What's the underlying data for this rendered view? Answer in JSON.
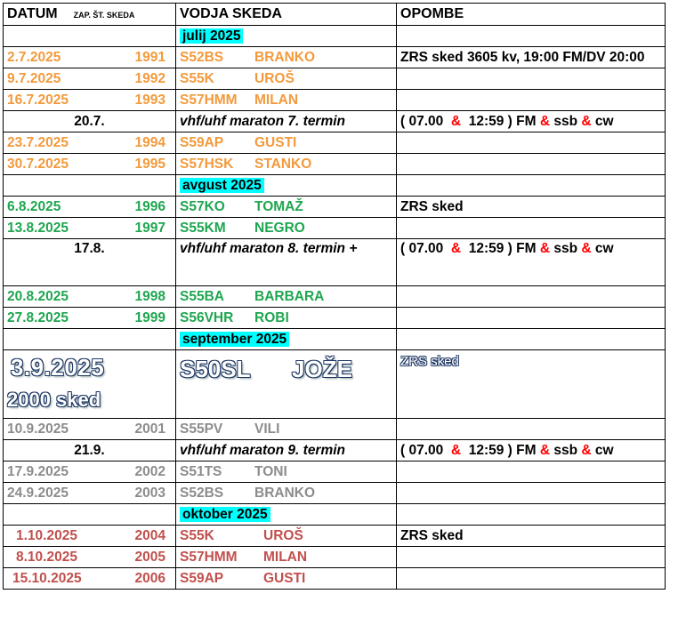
{
  "header": {
    "datum": "DATUM",
    "zap": "ZAP. ŠT. SKEDA",
    "vodja": "VODJA  SKEDA",
    "opombe": "OPOMBE"
  },
  "months": {
    "jul": "julij 2025",
    "aug": "avgust  2025",
    "sep": "september 2025",
    "oct": "oktober  2025"
  },
  "rows": [
    {
      "date": "2.7.2025",
      "num": "1991",
      "call": "S52BS",
      "name": "BRANKO",
      "note": "ZRS sked 3605 kv, 19:00 FM/DV 20:00"
    },
    {
      "date": "9.7.2025",
      "num": "1992",
      "call": "S55K",
      "name": "UROŠ"
    },
    {
      "date": "16.7.2025",
      "num": "1993",
      "call": "S57HMM",
      "name": "MILAN"
    },
    {
      "date": "23.7.2025",
      "num": "1994",
      "call": "S59AP",
      "name": "GUSTI"
    },
    {
      "date": "30.7.2025",
      "num": "1995",
      "call": "S57HSK",
      "name": "STANKO"
    },
    {
      "date": "6.8.2025",
      "num": "1996",
      "call": "S57KO",
      "name": "TOMAŽ",
      "note": "ZRS  sked"
    },
    {
      "date": "13.8.2025",
      "num": "1997",
      "call": "S55KM",
      "name": "NEGRO"
    },
    {
      "date": "20.8.2025",
      "num": "1998",
      "call": "S55BA",
      "name": "BARBARA"
    },
    {
      "date": "27.8.2025",
      "num": "1999",
      "call": "S56VHR",
      "name": "ROBI"
    },
    {
      "date": "10.9.2025",
      "num": "2001",
      "call": "S55PV",
      "name": "VILI"
    },
    {
      "date": "17.9.2025",
      "num": "2002",
      "call": "S51TS",
      "name": "TONI"
    },
    {
      "date": "24.9.2025",
      "num": "2003",
      "call": "S52BS",
      "name": "BRANKO"
    },
    {
      "date": "1.10.2025",
      "num": "2004",
      "call": "S55K",
      "name": "UROŠ",
      "note": "ZRS sked"
    },
    {
      "date": "8.10.2025",
      "num": "2005",
      "call": "S57HMM",
      "name": "MILAN"
    },
    {
      "date": "15.10.2025",
      "num": "2006",
      "call": "S59AP",
      "name": "GUSTI"
    }
  ],
  "marathons": [
    {
      "date": "20.7.",
      "title": "vhf/uhf  maraton 7. termin",
      "t1": "( 07.00",
      "t2": "12:59 ) FM",
      "t3": "ssb",
      "t4": "cw"
    },
    {
      "date": "17.8.",
      "title": "vhf/uhf  maraton 8. termin +",
      "t1": "( 07.00",
      "t2": "12:59 ) FM",
      "t3": "ssb",
      "t4": "cw"
    },
    {
      "date": "21.9.",
      "title": "vhf/uhf  maraton 9. termin",
      "t1": "( 07.00",
      "t2": "12:59 ) FM",
      "t3": "ssb",
      "t4": "cw"
    }
  ],
  "amp": "&",
  "special": {
    "date": "3.9.2025",
    "sked": "2000  sked",
    "call": "S50SL",
    "name": "JOŽE",
    "note": "ZRS  sked"
  },
  "colors": {
    "july": "#f39a3c",
    "august": "#1fa650",
    "september": "#8c8c8c",
    "october": "#c0504d",
    "month_bg": "#00ffff",
    "amp": "#ff0000"
  }
}
